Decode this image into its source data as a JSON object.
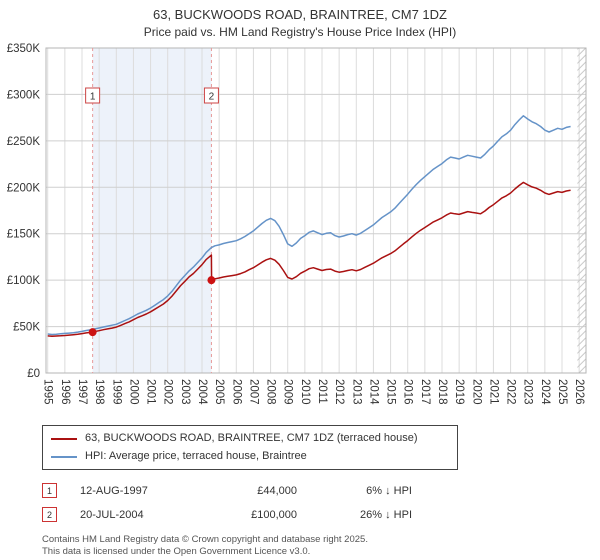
{
  "header": {
    "title": "63, BUCKWOODS ROAD, BRAINTREE, CM7 1DZ",
    "subtitle": "Price paid vs. HM Land Registry's House Price Index (HPI)"
  },
  "chart_data": {
    "type": "line",
    "title": "63, BUCKWOODS ROAD, BRAINTREE, CM7 1DZ — Price paid vs. HPI",
    "x_axis": {
      "min": 1994.9,
      "max": 2026.4,
      "ticks": [
        1995,
        1996,
        1997,
        1998,
        1999,
        2000,
        2001,
        2002,
        2003,
        2004,
        2005,
        2006,
        2007,
        2008,
        2009,
        2010,
        2011,
        2012,
        2013,
        2014,
        2015,
        2016,
        2017,
        2018,
        2019,
        2020,
        2021,
        2022,
        2023,
        2024,
        2025,
        2026
      ]
    },
    "y_axis": {
      "min": 0,
      "max": 350000,
      "tick_values": [
        0,
        50000,
        100000,
        150000,
        200000,
        250000,
        300000,
        350000
      ],
      "tick_labels": [
        "£0",
        "£50K",
        "£100K",
        "£150K",
        "£200K",
        "£250K",
        "£300K",
        "£350K"
      ]
    },
    "shaded_region": {
      "from": 1997.62,
      "to": 2004.55,
      "color": "#edf2fa"
    },
    "hatch_region": {
      "from": 2025.9,
      "to": 2026.4
    },
    "sale_markers": [
      {
        "label": "1",
        "x": 1997.62,
        "value": 44000
      },
      {
        "label": "2",
        "x": 2004.55,
        "value": 100000
      }
    ],
    "series": [
      {
        "name": "63, BUCKWOODS ROAD, BRAINTREE, CM7 1DZ (terraced house)",
        "color": "#aa1111",
        "points": [
          [
            1995.0,
            40000
          ],
          [
            1995.25,
            39600
          ],
          [
            1995.5,
            39800
          ],
          [
            1995.75,
            40100
          ],
          [
            1996.0,
            40400
          ],
          [
            1996.25,
            40800
          ],
          [
            1996.5,
            41200
          ],
          [
            1996.75,
            41700
          ],
          [
            1997.0,
            42400
          ],
          [
            1997.25,
            43200
          ],
          [
            1997.62,
            44000
          ],
          [
            1997.75,
            44700
          ],
          [
            1998.0,
            45600
          ],
          [
            1998.25,
            46600
          ],
          [
            1998.5,
            47500
          ],
          [
            1998.75,
            48400
          ],
          [
            1999.0,
            49400
          ],
          [
            1999.25,
            51300
          ],
          [
            1999.5,
            53200
          ],
          [
            1999.75,
            55000
          ],
          [
            2000.0,
            57400
          ],
          [
            2000.25,
            59800
          ],
          [
            2000.5,
            61600
          ],
          [
            2000.75,
            63500
          ],
          [
            2001.0,
            65900
          ],
          [
            2001.25,
            68700
          ],
          [
            2001.5,
            71500
          ],
          [
            2001.75,
            74300
          ],
          [
            2002.0,
            78100
          ],
          [
            2002.25,
            82800
          ],
          [
            2002.5,
            88400
          ],
          [
            2002.75,
            94100
          ],
          [
            2003.0,
            98800
          ],
          [
            2003.25,
            103500
          ],
          [
            2003.5,
            107200
          ],
          [
            2003.75,
            111900
          ],
          [
            2004.0,
            116600
          ],
          [
            2004.25,
            122300
          ],
          [
            2004.55,
            127000
          ],
          [
            2004.56,
            100000
          ],
          [
            2004.75,
            101500
          ],
          [
            2005.0,
            102300
          ],
          [
            2005.25,
            103400
          ],
          [
            2005.5,
            104100
          ],
          [
            2005.75,
            104900
          ],
          [
            2006.0,
            105600
          ],
          [
            2006.25,
            107100
          ],
          [
            2006.5,
            108900
          ],
          [
            2006.75,
            111200
          ],
          [
            2007.0,
            113400
          ],
          [
            2007.25,
            116300
          ],
          [
            2007.5,
            119300
          ],
          [
            2007.75,
            121900
          ],
          [
            2008.0,
            123400
          ],
          [
            2008.25,
            121500
          ],
          [
            2008.5,
            117100
          ],
          [
            2008.75,
            110400
          ],
          [
            2009.0,
            103000
          ],
          [
            2009.25,
            101200
          ],
          [
            2009.5,
            103700
          ],
          [
            2009.75,
            107400
          ],
          [
            2010.0,
            109700
          ],
          [
            2010.25,
            112300
          ],
          [
            2010.5,
            113400
          ],
          [
            2010.75,
            111900
          ],
          [
            2011.0,
            110400
          ],
          [
            2011.25,
            111500
          ],
          [
            2011.5,
            111900
          ],
          [
            2011.75,
            109700
          ],
          [
            2012.0,
            108600
          ],
          [
            2012.25,
            109300
          ],
          [
            2012.5,
            110400
          ],
          [
            2012.75,
            111200
          ],
          [
            2013.0,
            110100
          ],
          [
            2013.25,
            111500
          ],
          [
            2013.5,
            113800
          ],
          [
            2013.75,
            116000
          ],
          [
            2014.0,
            118200
          ],
          [
            2014.25,
            121200
          ],
          [
            2014.5,
            124100
          ],
          [
            2014.75,
            126300
          ],
          [
            2015.0,
            128600
          ],
          [
            2015.25,
            131500
          ],
          [
            2015.5,
            135300
          ],
          [
            2015.75,
            139000
          ],
          [
            2016.0,
            142600
          ],
          [
            2016.25,
            146700
          ],
          [
            2016.5,
            150400
          ],
          [
            2016.75,
            153800
          ],
          [
            2017.0,
            156700
          ],
          [
            2017.25,
            159700
          ],
          [
            2017.5,
            162700
          ],
          [
            2017.75,
            164900
          ],
          [
            2018.0,
            167100
          ],
          [
            2018.25,
            170100
          ],
          [
            2018.5,
            172300
          ],
          [
            2018.75,
            171500
          ],
          [
            2019.0,
            170800
          ],
          [
            2019.25,
            172300
          ],
          [
            2019.5,
            173800
          ],
          [
            2019.75,
            173000
          ],
          [
            2020.0,
            172300
          ],
          [
            2020.25,
            171500
          ],
          [
            2020.5,
            174500
          ],
          [
            2020.75,
            178200
          ],
          [
            2021.0,
            181200
          ],
          [
            2021.25,
            184900
          ],
          [
            2021.5,
            188600
          ],
          [
            2021.75,
            190800
          ],
          [
            2022.0,
            193800
          ],
          [
            2022.25,
            198200
          ],
          [
            2022.5,
            201900
          ],
          [
            2022.75,
            205300
          ],
          [
            2023.0,
            202700
          ],
          [
            2023.25,
            200400
          ],
          [
            2023.5,
            199000
          ],
          [
            2023.75,
            196700
          ],
          [
            2024.0,
            193800
          ],
          [
            2024.25,
            192300
          ],
          [
            2024.5,
            193800
          ],
          [
            2024.75,
            195300
          ],
          [
            2025.0,
            194500
          ],
          [
            2025.25,
            196000
          ],
          [
            2025.5,
            196800
          ]
        ]
      },
      {
        "name": "HPI: Average price, terraced house, Braintree",
        "color": "#6593c8",
        "points": [
          [
            1995.0,
            42000
          ],
          [
            1995.25,
            41500
          ],
          [
            1995.5,
            41800
          ],
          [
            1995.75,
            42200
          ],
          [
            1996.0,
            42600
          ],
          [
            1996.25,
            43000
          ],
          [
            1996.5,
            43400
          ],
          [
            1996.75,
            44000
          ],
          [
            1997.0,
            44800
          ],
          [
            1997.25,
            45800
          ],
          [
            1997.62,
            46800
          ],
          [
            1997.75,
            47500
          ],
          [
            1998.0,
            48500
          ],
          [
            1998.25,
            49500
          ],
          [
            1998.5,
            50500
          ],
          [
            1998.75,
            51500
          ],
          [
            1999.0,
            52500
          ],
          [
            1999.25,
            54500
          ],
          [
            1999.5,
            56500
          ],
          [
            1999.75,
            58500
          ],
          [
            2000.0,
            61000
          ],
          [
            2000.25,
            63500
          ],
          [
            2000.5,
            65500
          ],
          [
            2000.75,
            67500
          ],
          [
            2001.0,
            70000
          ],
          [
            2001.25,
            73000
          ],
          [
            2001.5,
            76000
          ],
          [
            2001.75,
            79000
          ],
          [
            2002.0,
            83000
          ],
          [
            2002.25,
            88000
          ],
          [
            2002.5,
            94000
          ],
          [
            2002.75,
            100000
          ],
          [
            2003.0,
            105000
          ],
          [
            2003.25,
            110000
          ],
          [
            2003.5,
            114000
          ],
          [
            2003.75,
            119000
          ],
          [
            2004.0,
            124000
          ],
          [
            2004.25,
            130000
          ],
          [
            2004.55,
            135000
          ],
          [
            2004.75,
            137000
          ],
          [
            2005.0,
            138000
          ],
          [
            2005.25,
            139500
          ],
          [
            2005.5,
            140500
          ],
          [
            2005.75,
            141500
          ],
          [
            2006.0,
            142500
          ],
          [
            2006.25,
            144500
          ],
          [
            2006.5,
            147000
          ],
          [
            2006.75,
            150000
          ],
          [
            2007.0,
            153000
          ],
          [
            2007.25,
            157000
          ],
          [
            2007.5,
            161000
          ],
          [
            2007.75,
            164500
          ],
          [
            2008.0,
            166500
          ],
          [
            2008.25,
            164000
          ],
          [
            2008.5,
            158000
          ],
          [
            2008.75,
            149000
          ],
          [
            2009.0,
            139000
          ],
          [
            2009.25,
            136500
          ],
          [
            2009.5,
            140000
          ],
          [
            2009.75,
            145000
          ],
          [
            2010.0,
            148000
          ],
          [
            2010.25,
            151500
          ],
          [
            2010.5,
            153000
          ],
          [
            2010.75,
            151000
          ],
          [
            2011.0,
            149000
          ],
          [
            2011.25,
            150500
          ],
          [
            2011.5,
            151000
          ],
          [
            2011.75,
            148000
          ],
          [
            2012.0,
            146500
          ],
          [
            2012.25,
            147500
          ],
          [
            2012.5,
            149000
          ],
          [
            2012.75,
            150000
          ],
          [
            2013.0,
            148500
          ],
          [
            2013.25,
            150500
          ],
          [
            2013.5,
            153500
          ],
          [
            2013.75,
            156500
          ],
          [
            2014.0,
            159500
          ],
          [
            2014.25,
            163500
          ],
          [
            2014.5,
            167500
          ],
          [
            2014.75,
            170500
          ],
          [
            2015.0,
            173500
          ],
          [
            2015.25,
            177500
          ],
          [
            2015.5,
            182500
          ],
          [
            2015.75,
            187500
          ],
          [
            2016.0,
            192500
          ],
          [
            2016.25,
            198000
          ],
          [
            2016.5,
            203000
          ],
          [
            2016.75,
            207500
          ],
          [
            2017.0,
            211500
          ],
          [
            2017.25,
            215500
          ],
          [
            2017.5,
            219500
          ],
          [
            2017.75,
            222500
          ],
          [
            2018.0,
            225500
          ],
          [
            2018.25,
            229500
          ],
          [
            2018.5,
            232500
          ],
          [
            2018.75,
            231500
          ],
          [
            2019.0,
            230500
          ],
          [
            2019.25,
            232500
          ],
          [
            2019.5,
            234500
          ],
          [
            2019.75,
            233500
          ],
          [
            2020.0,
            232500
          ],
          [
            2020.25,
            231500
          ],
          [
            2020.5,
            235500
          ],
          [
            2020.75,
            240500
          ],
          [
            2021.0,
            244500
          ],
          [
            2021.25,
            249500
          ],
          [
            2021.5,
            254500
          ],
          [
            2021.75,
            257500
          ],
          [
            2022.0,
            261500
          ],
          [
            2022.25,
            267500
          ],
          [
            2022.5,
            272500
          ],
          [
            2022.75,
            277000
          ],
          [
            2023.0,
            273500
          ],
          [
            2023.25,
            270500
          ],
          [
            2023.5,
            268500
          ],
          [
            2023.75,
            265500
          ],
          [
            2024.0,
            261500
          ],
          [
            2024.25,
            259500
          ],
          [
            2024.5,
            261500
          ],
          [
            2024.75,
            263500
          ],
          [
            2025.0,
            262500
          ],
          [
            2025.25,
            264500
          ],
          [
            2025.5,
            265500
          ]
        ]
      }
    ],
    "legend_position": "bottom",
    "grid": true
  },
  "legend": {
    "items": [
      {
        "label": "63, BUCKWOODS ROAD, BRAINTREE, CM7 1DZ (terraced house)",
        "color": "#aa1111"
      },
      {
        "label": "HPI: Average price, terraced house, Braintree",
        "color": "#6593c8"
      }
    ]
  },
  "transactions": [
    {
      "num": "1",
      "date": "12-AUG-1997",
      "price": "£44,000",
      "change": "6% ↓ HPI"
    },
    {
      "num": "2",
      "date": "20-JUL-2004",
      "price": "£100,000",
      "change": "26% ↓ HPI"
    }
  ],
  "footer": {
    "line1": "Contains HM Land Registry data © Crown copyright and database right 2025.",
    "line2": "This data is licensed under the Open Government Licence v3.0."
  }
}
